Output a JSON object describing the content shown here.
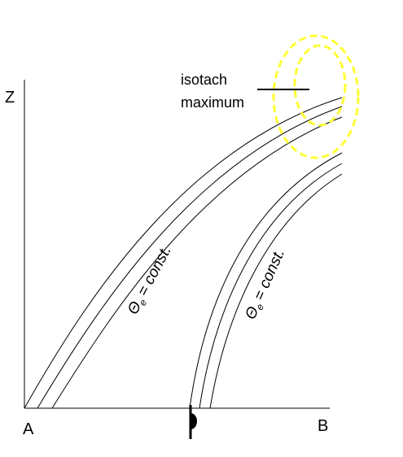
{
  "axis_labels": {
    "vertical": "Z",
    "left": "A",
    "right": "B"
  },
  "annotation": {
    "line1": "isotach",
    "line2": "maximum"
  },
  "surfaces": [
    {
      "symbol": "Θ",
      "subscript": "e",
      "text": "= const."
    },
    {
      "symbol": "Θ",
      "subscript": "e",
      "text": "= const."
    }
  ]
}
